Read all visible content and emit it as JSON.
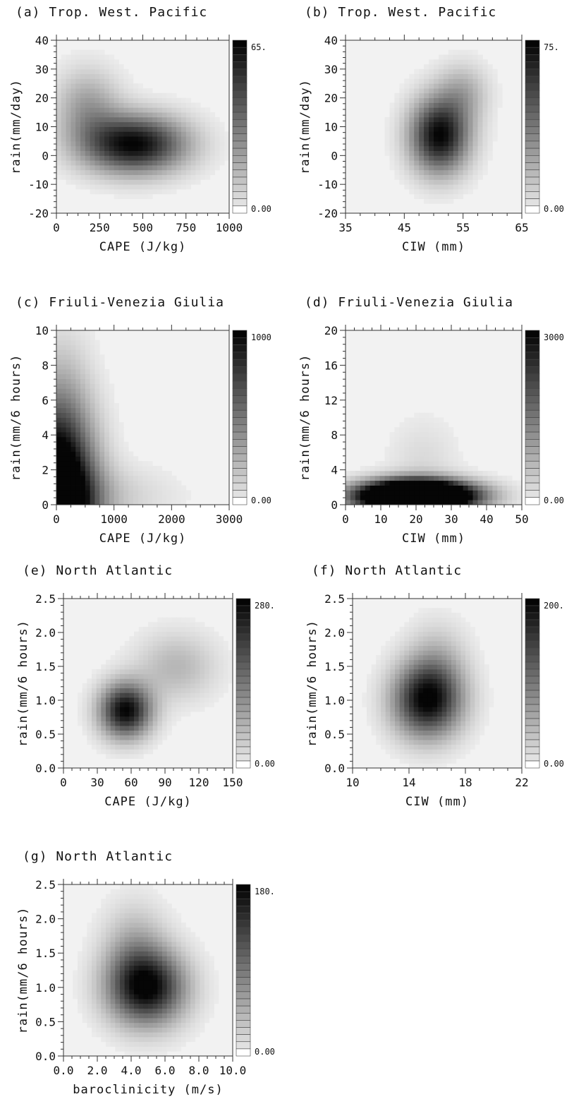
{
  "figure": {
    "panels": [
      {
        "id": "a",
        "title": "(a) Trop. West. Pacific",
        "xlabel": "CAPE (J/kg)",
        "ylabel": "rain(mm/day)",
        "xticks": [
          "0",
          "250",
          "500",
          "750",
          "1000"
        ],
        "yticks": [
          "-20",
          "-10",
          "0",
          "10",
          "20",
          "30",
          "40"
        ],
        "cbar_max": "65.",
        "cbar_min": "0.00"
      },
      {
        "id": "b",
        "title": "(b) Trop. West. Pacific",
        "xlabel": "CIW (mm)",
        "ylabel": "rain(mm/day)",
        "xticks": [
          "35",
          "45",
          "55",
          "65"
        ],
        "yticks": [
          "-20",
          "-10",
          "0",
          "10",
          "20",
          "30",
          "40"
        ],
        "cbar_max": "75.",
        "cbar_min": "0.00"
      },
      {
        "id": "c",
        "title": "(c) Friuli-Venezia Giulia",
        "xlabel": "CAPE (J/kg)",
        "ylabel": "rain(mm/6 hours)",
        "xticks": [
          "0",
          "1000",
          "2000",
          "3000"
        ],
        "yticks": [
          "0",
          "2",
          "4",
          "6",
          "8",
          "10"
        ],
        "cbar_max": "1000",
        "cbar_min": "0.00"
      },
      {
        "id": "d",
        "title": "(d) Friuli-Venezia Giulia",
        "xlabel": "CIW (mm)",
        "ylabel": "rain(mm/6 hours)",
        "xticks": [
          "0",
          "10",
          "20",
          "30",
          "40",
          "50"
        ],
        "yticks": [
          "0",
          "4",
          "8",
          "12",
          "16",
          "20"
        ],
        "cbar_max": "3000",
        "cbar_min": "0.00"
      },
      {
        "id": "e",
        "title": "(e) North Atlantic",
        "xlabel": "CAPE (J/kg)",
        "ylabel": "rain(mm/6 hours)",
        "xticks": [
          "0",
          "30",
          "60",
          "90",
          "120",
          "150"
        ],
        "yticks": [
          "0.0",
          "0.5",
          "1.0",
          "1.5",
          "2.0",
          "2.5"
        ],
        "cbar_max": "280.",
        "cbar_min": "0.00"
      },
      {
        "id": "f",
        "title": "(f) North Atlantic",
        "xlabel": "CIW (mm)",
        "ylabel": "rain(mm/6 hours)",
        "xticks": [
          "10",
          "14",
          "18",
          "22"
        ],
        "yticks": [
          "0.0",
          "0.5",
          "1.0",
          "1.5",
          "2.0",
          "2.5"
        ],
        "cbar_max": "200.",
        "cbar_min": "0.00"
      },
      {
        "id": "g",
        "title": "(g) North Atlantic",
        "xlabel": "baroclinicity (m/s)",
        "ylabel": "rain(mm/6 hours)",
        "xticks": [
          "0.0",
          "2.0",
          "4.0",
          "6.0",
          "8.0",
          "10.0"
        ],
        "yticks": [
          "0.0",
          "0.5",
          "1.0",
          "1.5",
          "2.0",
          "2.5"
        ],
        "cbar_max": "180.",
        "cbar_min": "0.00"
      }
    ]
  },
  "chart_data": [
    {
      "type": "heatmap",
      "title": "(a) Trop. West. Pacific",
      "xlabel": "CAPE (J/kg)",
      "ylabel": "rain(mm/day)",
      "xlim": [
        0,
        1000
      ],
      "ylim": [
        -20,
        40
      ],
      "colorbar": [
        0,
        65
      ],
      "blobs": [
        {
          "x": 450,
          "y": 4,
          "sx": 210,
          "sy": 7,
          "a": 65
        },
        {
          "x": 180,
          "y": 17,
          "sx": 130,
          "sy": 9,
          "a": 22
        }
      ]
    },
    {
      "type": "heatmap",
      "title": "(b) Trop. West. Pacific",
      "xlabel": "CIW (mm)",
      "ylabel": "rain(mm/day)",
      "xlim": [
        35,
        65
      ],
      "ylim": [
        -20,
        40
      ],
      "colorbar": [
        0,
        75
      ],
      "blobs": [
        {
          "x": 51,
          "y": 7,
          "sx": 3.5,
          "sy": 9,
          "a": 75
        },
        {
          "x": 55,
          "y": 22,
          "sx": 3,
          "sy": 7,
          "a": 20
        }
      ]
    },
    {
      "type": "heatmap",
      "title": "(c) Friuli-Venezia Giulia",
      "xlabel": "CAPE (J/kg)",
      "ylabel": "rain(mm/6 hours)",
      "xlim": [
        0,
        3000
      ],
      "ylim": [
        0,
        10
      ],
      "colorbar": [
        0,
        1000
      ],
      "blobs": [
        {
          "x": 0,
          "y": 0,
          "sx": 450,
          "sy": 3.5,
          "a": 1600
        },
        {
          "x": 600,
          "y": 0.5,
          "sx": 900,
          "sy": 1.2,
          "a": 180
        },
        {
          "x": 100,
          "y": 6,
          "sx": 350,
          "sy": 3,
          "a": 160
        }
      ]
    },
    {
      "type": "heatmap",
      "title": "(d) Friuli-Venezia Giulia",
      "xlabel": "CIW (mm)",
      "ylabel": "rain(mm/6 hours)",
      "xlim": [
        0,
        50
      ],
      "ylim": [
        0,
        20
      ],
      "colorbar": [
        0,
        3000
      ],
      "blobs": [
        {
          "x": 20,
          "y": 1,
          "sx": 11,
          "sy": 1.2,
          "a": 8000
        },
        {
          "x": 22,
          "y": 5,
          "sx": 7,
          "sy": 3.5,
          "a": 300
        }
      ]
    },
    {
      "type": "heatmap",
      "title": "(e) North Atlantic",
      "xlabel": "CAPE (J/kg)",
      "ylabel": "rain(mm/6 hours)",
      "xlim": [
        0,
        150
      ],
      "ylim": [
        0,
        2.5
      ],
      "colorbar": [
        0,
        280
      ],
      "blobs": [
        {
          "x": 55,
          "y": 0.85,
          "sx": 16,
          "sy": 0.28,
          "a": 280
        },
        {
          "x": 100,
          "y": 1.5,
          "sx": 25,
          "sy": 0.35,
          "a": 70
        }
      ]
    },
    {
      "type": "heatmap",
      "title": "(f) North Atlantic",
      "xlabel": "CIW (mm)",
      "ylabel": "rain(mm/6 hours)",
      "xlim": [
        10,
        22
      ],
      "ylim": [
        0,
        2.5
      ],
      "colorbar": [
        0,
        200
      ],
      "blobs": [
        {
          "x": 15.3,
          "y": 1.0,
          "sx": 1.7,
          "sy": 0.38,
          "a": 200
        },
        {
          "x": 16,
          "y": 1.6,
          "sx": 1.5,
          "sy": 0.4,
          "a": 40
        }
      ]
    },
    {
      "type": "heatmap",
      "title": "(g) North Atlantic",
      "xlabel": "baroclinicity (m/s)",
      "ylabel": "rain(mm/6 hours)",
      "xlim": [
        0,
        10
      ],
      "ylim": [
        0,
        2.5
      ],
      "colorbar": [
        0,
        180
      ],
      "blobs": [
        {
          "x": 4.9,
          "y": 1.0,
          "sx": 1.6,
          "sy": 0.38,
          "a": 180
        },
        {
          "x": 4.2,
          "y": 1.6,
          "sx": 1.3,
          "sy": 0.45,
          "a": 45
        }
      ]
    }
  ]
}
